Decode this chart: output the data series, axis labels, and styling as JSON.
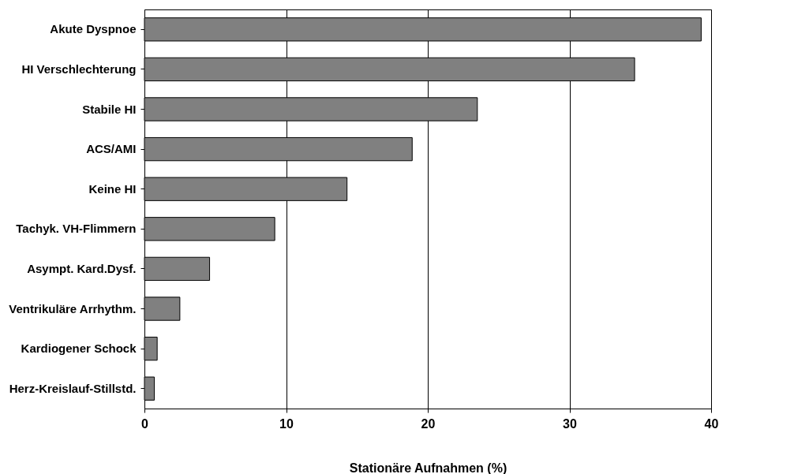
{
  "chart_data": {
    "type": "bar",
    "orientation": "horizontal",
    "xlabel": "Stationäre Aufnahmen (%)",
    "categories": [
      "Akute Dyspnoe",
      "HI Verschlechterung",
      "Stabile HI",
      "ACS/AMI",
      "Keine HI",
      "Tachyk. VH-Flimmern",
      "Asympt. Kard.Dysf.",
      "Ventrikuläre Arrhythm.",
      "Kardiogener Schock",
      "Herz-Kreislauf-Stillstd."
    ],
    "values": [
      39.3,
      34.6,
      23.5,
      18.9,
      14.3,
      9.2,
      4.6,
      2.5,
      0.9,
      0.7
    ],
    "color": "#808080",
    "xlim": [
      0,
      40
    ],
    "xticks": [
      0,
      10,
      20,
      30,
      40
    ],
    "grid": "x"
  }
}
